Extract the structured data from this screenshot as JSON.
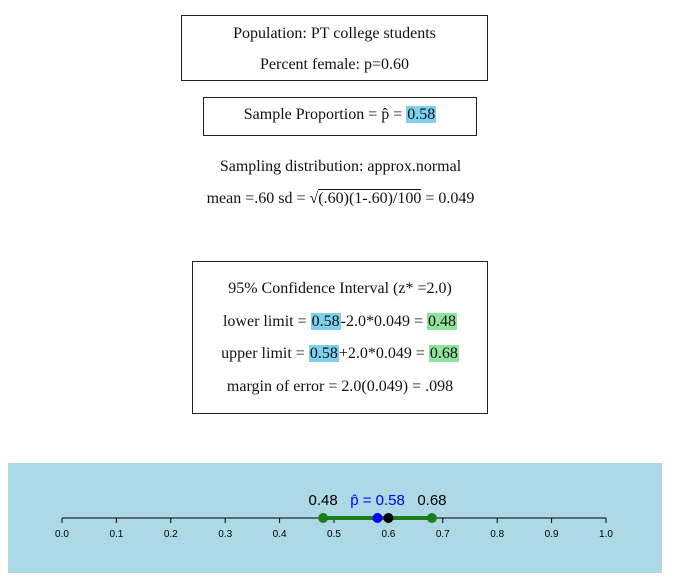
{
  "population_box": {
    "line1": "Population: PT college students",
    "line2": "Percent female: p=0.60"
  },
  "sample_box": {
    "label": "Sample Proportion = p̂ = ",
    "value": "0.58"
  },
  "sampling": {
    "line1": "Sampling distribution: approx.normal",
    "mean_sd_prefix": "mean =.60 sd = ",
    "sqrt_symbol": "√",
    "sqrt_content": "(.60)(1-.60)/100",
    "result": " = 0.049"
  },
  "ci_box": {
    "title": "95% Confidence Interval (z* =2.0)",
    "lower_label": "lower limit = ",
    "lower_phat": "0.58",
    "lower_expr": "-2.0*0.049 = ",
    "lower_value": "0.48",
    "upper_label": "upper limit = ",
    "upper_phat": "0.58",
    "upper_expr": "+2.0*0.049 = ",
    "upper_value": "0.68",
    "margin": "margin of error = 2.0(0.049) = .098"
  },
  "numberline": {
    "ticks": [
      "0.0",
      "0.1",
      "0.2",
      "0.3",
      "0.4",
      "0.5",
      "0.6",
      "0.7",
      "0.8",
      "0.9",
      "1.0"
    ],
    "lower_label": "0.48",
    "upper_label": "0.68",
    "phat_label": "p̂ = 0.58",
    "lower": 0.48,
    "upper": 0.68,
    "phat": 0.58,
    "p": 0.6,
    "colors": {
      "interval": "#1a7f1a",
      "phat": "#0000ff",
      "p": "#000000",
      "phat_text": "#0000ff",
      "panel": "#add8e6"
    }
  }
}
